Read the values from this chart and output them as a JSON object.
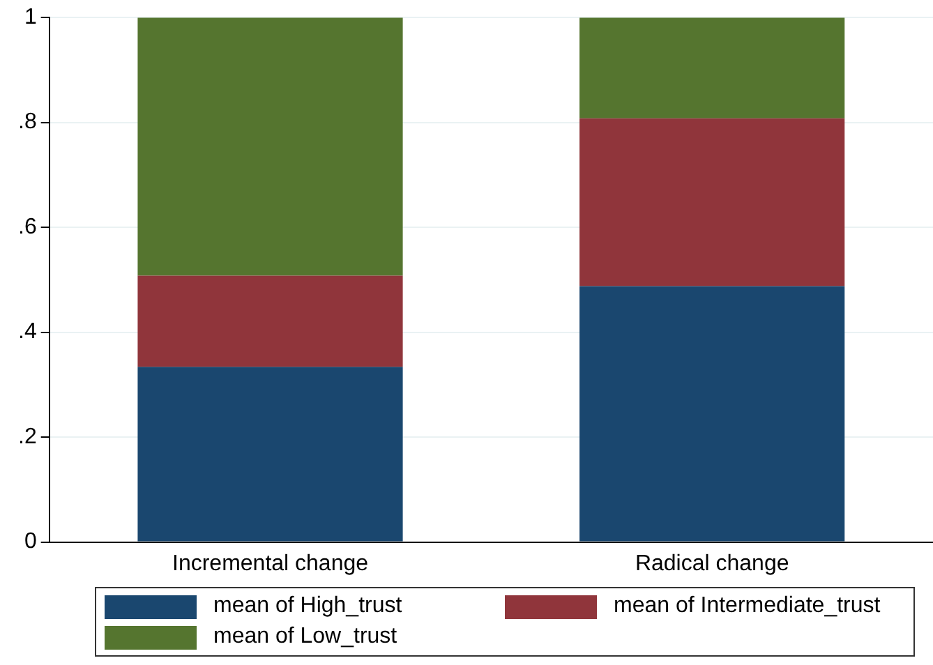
{
  "chart_data": {
    "type": "bar",
    "stacked": true,
    "categories": [
      "Incremental change",
      "Radical change"
    ],
    "series": [
      {
        "name": "mean of High_trust",
        "color": "#1a476f",
        "values": [
          0.334,
          0.488
        ]
      },
      {
        "name": "mean of Intermediate_trust",
        "color": "#90353b",
        "values": [
          0.174,
          0.32
        ]
      },
      {
        "name": "mean of Low_trust",
        "color": "#55752f",
        "values": [
          0.492,
          0.192
        ]
      }
    ],
    "ylim": [
      0,
      1
    ],
    "yticks": [
      {
        "value": 0,
        "label": "0"
      },
      {
        "value": 0.2,
        "label": ".2"
      },
      {
        "value": 0.4,
        "label": ".4"
      },
      {
        "value": 0.6,
        "label": ".6"
      },
      {
        "value": 0.8,
        "label": ".8"
      },
      {
        "value": 1,
        "label": "1"
      }
    ],
    "grid": "y",
    "legend": "bottom"
  }
}
